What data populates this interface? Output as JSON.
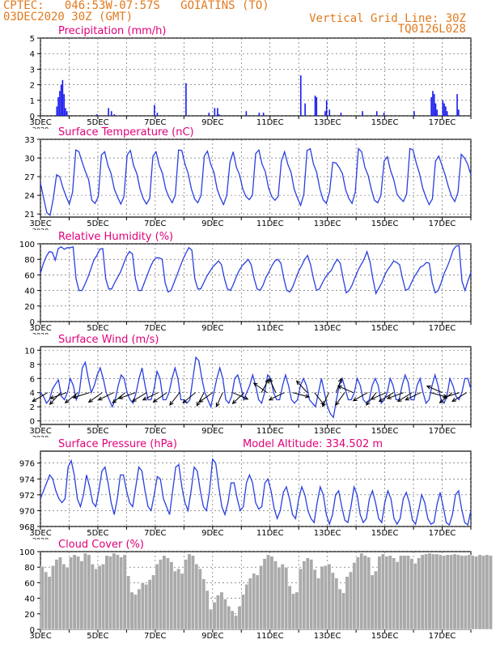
{
  "header": {
    "line1": "CPTEC:   046:53W-07:57S   GOIATINS (TO)",
    "line2": "03DEC2020 30Z (GMT)",
    "grid_note": "Vertical Grid Line: 30Z",
    "code": "TQ0126L028",
    "altitude": "Model Altitude: 334.502 m"
  },
  "colors": {
    "header": "#e07a1e",
    "title": "#e0007a",
    "line": "#2a3fe0",
    "bar": "#1a1aee",
    "cloud": "#aaaaaa"
  },
  "x_axis": {
    "start_day": 3,
    "end_day": 18,
    "tick_labels": [
      "3DEC",
      "5DEC",
      "7DEC",
      "9DEC",
      "11DEC",
      "13DEC",
      "15DEC",
      "17DEC"
    ],
    "year_label": "2020"
  },
  "chart_data": [
    {
      "type": "bar",
      "title": "Precipitation (mm/h)",
      "ylim": [
        0,
        5
      ],
      "yticks": [
        0,
        1,
        2,
        3,
        4,
        5
      ],
      "grid": true,
      "x": [
        3.55,
        3.6,
        3.65,
        3.7,
        3.75,
        3.8,
        3.85,
        3.9,
        4.95,
        5.35,
        5.45,
        5.55,
        6.95,
        7.05,
        8.05,
        8.85,
        9.05,
        9.15,
        9.2,
        10.15,
        10.6,
        10.75,
        12.05,
        12.2,
        12.55,
        12.6,
        12.9,
        12.95,
        13.05,
        13.45,
        14.2,
        14.7,
        14.95,
        16.0,
        16.6,
        16.65,
        16.7,
        16.75,
        16.8,
        17.0,
        17.05,
        17.1,
        17.15,
        17.5,
        17.55
      ],
      "values": [
        0.6,
        1.2,
        1.6,
        2.0,
        2.3,
        1.4,
        0.5,
        0.3,
        0.1,
        0.5,
        0.3,
        0.1,
        0.7,
        0.2,
        2.1,
        0.2,
        0.5,
        0.5,
        0.1,
        0.3,
        0.2,
        0.2,
        2.6,
        0.8,
        1.3,
        1.2,
        0.3,
        1.0,
        0.4,
        0.2,
        0.3,
        0.3,
        0.2,
        0.3,
        1.2,
        1.6,
        1.4,
        0.8,
        0.4,
        1.0,
        0.8,
        0.6,
        0.3,
        1.4,
        0.4
      ]
    },
    {
      "type": "line",
      "title": "Surface Temperature (nC)",
      "ylim": [
        20.5,
        33
      ],
      "yticks": [
        21,
        24,
        27,
        30,
        33
      ],
      "grid": true,
      "period": 1.0,
      "series": [
        {
          "x_start": 3.0,
          "values": [
            26,
            23.5,
            21.2,
            20.8,
            23.5,
            27.3,
            27.0,
            25.2,
            23.8,
            22.6,
            24.5,
            31.3,
            31.0,
            29.3,
            27.8,
            26.5,
            23.2,
            22.7,
            23.8,
            30.5,
            31.0,
            28.8,
            27.5,
            25.0,
            23.7,
            22.6,
            23.8,
            30.5,
            31.2,
            28.8,
            27.5,
            25.0,
            23.5,
            22.6,
            23.5,
            30.3,
            31.0,
            28.8,
            27.5,
            25.0,
            23.7,
            22.8,
            24.0,
            31.3,
            31.2,
            29.0,
            27.5,
            25.0,
            23.4,
            22.8,
            24.0,
            30.3,
            31.1,
            29.0,
            27.7,
            25.0,
            23.6,
            22.5,
            24.0,
            29.3,
            31.0,
            28.5,
            27.3,
            25.0,
            23.8,
            23.3,
            24.0,
            30.7,
            31.3,
            29.0,
            27.8,
            25.2,
            23.8,
            23.2,
            23.8,
            29.5,
            31.0,
            29.0,
            27.7,
            25.0,
            23.6,
            22.4,
            24.2,
            31.2,
            31.5,
            29.0,
            27.7,
            25.0,
            23.3,
            22.7,
            24.5,
            29.3,
            29.2,
            28.5,
            27.5,
            24.9,
            23.5,
            22.7,
            24.5,
            31.5,
            31.0,
            28.5,
            27.2,
            25.0,
            23.2,
            22.8,
            24.0,
            29.5,
            30.2,
            28.0,
            26.5,
            24.2,
            23.5,
            23.0,
            24.2,
            31.5,
            31.3,
            29.2,
            27.5,
            25.2,
            23.7,
            22.5,
            23.4,
            29.5,
            30.3,
            28.8,
            27.3,
            25.4,
            23.8,
            23.0,
            24.5,
            30.6,
            30.0,
            29.0,
            27.3
          ]
        }
      ]
    },
    {
      "type": "line",
      "title": "Relative Humidity (%)",
      "ylim": [
        0,
        100
      ],
      "yticks": [
        0,
        20,
        40,
        60,
        80,
        100
      ],
      "grid": true,
      "period": 1.0,
      "series": [
        {
          "x_start": 3.0,
          "values": [
            62,
            75,
            84,
            90,
            89,
            79,
            94,
            96,
            93,
            95,
            95,
            96,
            55,
            40,
            40,
            48,
            57,
            68,
            79,
            85,
            93,
            94,
            55,
            42,
            42,
            50,
            57,
            64,
            74,
            84,
            90,
            87,
            55,
            40,
            40,
            50,
            60,
            70,
            78,
            82,
            82,
            80,
            50,
            38,
            40,
            50,
            60,
            70,
            80,
            88,
            95,
            92,
            55,
            42,
            42,
            50,
            58,
            64,
            70,
            74,
            78,
            73,
            55,
            42,
            40,
            48,
            58,
            66,
            72,
            76,
            80,
            73,
            55,
            42,
            40,
            47,
            57,
            64,
            72,
            78,
            80,
            75,
            55,
            40,
            38,
            45,
            55,
            65,
            72,
            80,
            85,
            73,
            55,
            40,
            42,
            50,
            57,
            62,
            66,
            74,
            80,
            75,
            55,
            37,
            40,
            47,
            57,
            66,
            73,
            80,
            90,
            77,
            55,
            36,
            43,
            50,
            60,
            67,
            72,
            78,
            76,
            73,
            55,
            40,
            42,
            50,
            58,
            64,
            70,
            72,
            76,
            75,
            50,
            37,
            40,
            50,
            62,
            70,
            80,
            92,
            97,
            98,
            52,
            40,
            52,
            63
          ]
        }
      ]
    },
    {
      "type": "line",
      "title": "Surface Wind (m/s)",
      "ylim": [
        -0.5,
        10.5
      ],
      "yticks": [
        0,
        2,
        4,
        6,
        8,
        10
      ],
      "grid": true,
      "period": 1.0,
      "series": [
        {
          "x_start": 3.0,
          "values": [
            4,
            3.5,
            2.5,
            3,
            4.5,
            5.2,
            5.8,
            3.5,
            3,
            4,
            6,
            5,
            3,
            4,
            7.5,
            8.3,
            6,
            4,
            5,
            6.5,
            7.5,
            6,
            4,
            3,
            2,
            3,
            5,
            6.5,
            6,
            4,
            3,
            2.5,
            4,
            6,
            7.5,
            5,
            3,
            3,
            4.5,
            7,
            6,
            3,
            3,
            4,
            6,
            7.5,
            6,
            3,
            3,
            2.5,
            3,
            6,
            9,
            8.5,
            6,
            4,
            3,
            2,
            4,
            6,
            7.5,
            6,
            3,
            2.5,
            3.5,
            6,
            6.5,
            5,
            3,
            4,
            5,
            6.5,
            5,
            3,
            2.5,
            4,
            6.5,
            6,
            4,
            3,
            3,
            5,
            6.5,
            5,
            3,
            2.5,
            3,
            5,
            6,
            5,
            3,
            2.5,
            2,
            4,
            6,
            4,
            2,
            1,
            0.5,
            3,
            5,
            6,
            4.5,
            3,
            3,
            4,
            6,
            5,
            3,
            2.5,
            3,
            5,
            6,
            5,
            2.5,
            3,
            4,
            6,
            5,
            3,
            3,
            5,
            6.5,
            5.5,
            3,
            3,
            5,
            6,
            4,
            2.5,
            3,
            5,
            6.5,
            5,
            3,
            2.5,
            3.5,
            6,
            5,
            3.5,
            3,
            4,
            6,
            6,
            4.5
          ]
        }
      ],
      "vectors": [
        [
          3.25,
          -0.85,
          -0.6
        ],
        [
          3.7,
          -0.6,
          -0.8
        ],
        [
          3.9,
          -0.9,
          -0.4
        ],
        [
          4.3,
          -0.7,
          -0.7
        ],
        [
          4.7,
          -0.9,
          -0.35
        ],
        [
          5.15,
          -0.75,
          -0.65
        ],
        [
          5.55,
          -0.85,
          -0.5
        ],
        [
          5.95,
          -0.7,
          -0.7
        ],
        [
          6.3,
          -0.9,
          -0.4
        ],
        [
          6.7,
          -0.8,
          -0.6
        ],
        [
          7.1,
          -0.85,
          -0.5
        ],
        [
          7.4,
          -0.75,
          -0.65
        ],
        [
          7.85,
          -0.55,
          -0.85
        ],
        [
          8.4,
          -0.7,
          -0.7
        ],
        [
          8.7,
          -0.4,
          -0.9
        ],
        [
          9.0,
          -0.75,
          -0.65
        ],
        [
          9.35,
          -0.35,
          -0.95
        ],
        [
          9.7,
          0.85,
          -0.45
        ],
        [
          10.1,
          -0.65,
          -0.75
        ],
        [
          10.7,
          0.4,
          0.9
        ],
        [
          10.9,
          -0.75,
          0.65
        ],
        [
          11.2,
          -0.35,
          0.95
        ],
        [
          11.5,
          -0.85,
          -0.5
        ],
        [
          11.8,
          0.9,
          -0.3
        ],
        [
          12.3,
          -0.6,
          0.8
        ],
        [
          12.55,
          0.55,
          -0.85
        ],
        [
          13.05,
          -0.35,
          -0.95
        ],
        [
          13.3,
          0.3,
          0.95
        ],
        [
          13.6,
          -0.5,
          -0.85
        ],
        [
          13.9,
          -0.85,
          0.45
        ],
        [
          14.4,
          -0.8,
          -0.55
        ],
        [
          14.7,
          -0.55,
          -0.85
        ],
        [
          15.05,
          -0.85,
          -0.45
        ],
        [
          15.3,
          -0.8,
          -0.6
        ],
        [
          15.65,
          -0.9,
          -0.4
        ],
        [
          15.95,
          -0.8,
          -0.6
        ],
        [
          16.25,
          -0.85,
          -0.5
        ],
        [
          16.6,
          0.9,
          -0.3
        ],
        [
          17.0,
          -0.85,
          0.45
        ],
        [
          17.35,
          -0.7,
          -0.7
        ],
        [
          17.6,
          -0.9,
          -0.35
        ],
        [
          17.85,
          -0.8,
          -0.6
        ]
      ]
    },
    {
      "type": "line",
      "title": "Surface Pressure (hPa)",
      "ylim": [
        968,
        977.5
      ],
      "yticks": [
        968,
        970,
        972,
        974,
        976
      ],
      "grid": true,
      "period": 1.0,
      "series": [
        {
          "x_start": 3.0,
          "values": [
            971.5,
            972.5,
            973.5,
            974.5,
            974,
            972.5,
            971.5,
            971,
            971.5,
            975.5,
            976.3,
            974.5,
            971.5,
            970.5,
            972,
            974.5,
            973,
            971,
            970.5,
            972.5,
            975,
            975.5,
            973.5,
            971,
            969.5,
            971.5,
            974.5,
            974.5,
            972.5,
            971,
            970.5,
            973,
            975.5,
            975,
            972.5,
            970.5,
            970,
            972,
            974.3,
            974,
            971.5,
            970.5,
            969.5,
            972.5,
            975.5,
            975.8,
            973,
            971,
            970,
            972.5,
            975.5,
            975,
            972.5,
            970.5,
            970,
            972.5,
            976.5,
            976,
            973,
            970.5,
            969.5,
            971,
            973.5,
            973.5,
            971.5,
            970,
            970.5,
            973.5,
            974.5,
            973.5,
            971,
            970.2,
            970.5,
            973.5,
            974,
            972.5,
            970.3,
            969,
            970,
            972.3,
            973,
            971.5,
            969.5,
            969,
            971.5,
            973,
            972,
            970,
            969,
            968.5,
            971,
            973,
            972,
            969.5,
            968.3,
            969.5,
            972,
            972.5,
            970.5,
            968.8,
            968.5,
            970.5,
            973,
            972,
            969.5,
            968.5,
            969,
            971.5,
            972.5,
            971,
            969,
            968.5,
            971,
            972.5,
            971.5,
            969,
            968.3,
            969,
            971.5,
            972.3,
            971,
            968.8,
            968.3,
            970,
            972,
            971,
            969,
            968.3,
            968.5,
            970.8,
            972.3,
            970.5,
            968.5,
            968.2,
            969.5,
            972,
            972.5,
            970.2,
            968.5,
            968.2,
            970
          ]
        }
      ]
    },
    {
      "type": "bar",
      "title": "Cloud Cover (%)",
      "ylim": [
        0,
        100
      ],
      "yticks": [
        0,
        20,
        40,
        60,
        80,
        100
      ],
      "grid": true,
      "x_start": 3.0,
      "x_step": 0.125,
      "values": [
        81,
        74,
        68,
        82,
        90,
        93,
        84,
        80,
        93,
        96,
        94,
        88,
        98,
        96,
        84,
        78,
        82,
        84,
        95,
        94,
        98,
        96,
        93,
        96,
        69,
        48,
        45,
        52,
        60,
        58,
        64,
        70,
        84,
        90,
        95,
        92,
        87,
        75,
        78,
        72,
        90,
        97,
        95,
        84,
        78,
        65,
        50,
        26,
        35,
        44,
        48,
        39,
        30,
        24,
        18,
        30,
        45,
        58,
        66,
        72,
        70,
        82,
        91,
        96,
        94,
        88,
        80,
        84,
        80,
        56,
        46,
        48,
        78,
        88,
        92,
        90,
        77,
        66,
        81,
        82,
        84,
        73,
        66,
        52,
        47,
        68,
        74,
        86,
        93,
        98,
        95,
        93,
        70,
        75,
        94,
        97,
        94,
        95,
        92,
        87,
        95,
        95,
        95,
        91,
        85,
        92,
        96,
        97,
        98,
        97,
        97,
        96,
        95,
        96,
        96,
        97,
        96,
        95,
        95,
        96,
        95,
        94,
        96,
        95,
        96,
        95
      ]
    }
  ]
}
